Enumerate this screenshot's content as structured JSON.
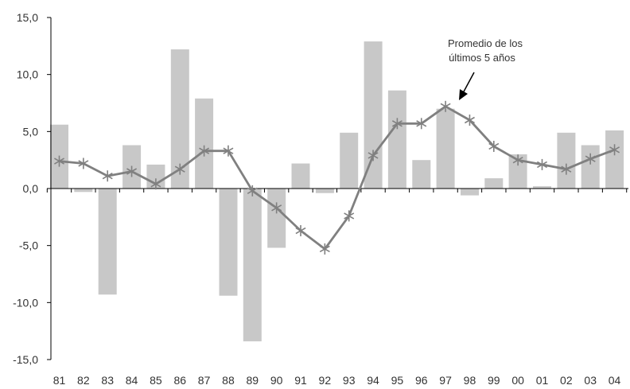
{
  "chart_data": {
    "type": "bar",
    "categories": [
      "81",
      "82",
      "83",
      "84",
      "85",
      "86",
      "87",
      "88",
      "89",
      "90",
      "91",
      "92",
      "93",
      "94",
      "95",
      "96",
      "97",
      "98",
      "99",
      "00",
      "01",
      "02",
      "03",
      "04"
    ],
    "series": [
      {
        "type": "bar",
        "values": [
          5.6,
          -0.3,
          -9.3,
          3.8,
          2.1,
          12.2,
          7.9,
          -9.4,
          -13.4,
          -5.2,
          2.2,
          -0.4,
          4.9,
          12.9,
          8.6,
          2.5,
          7.0,
          -0.6,
          0.9,
          3.0,
          0.2,
          4.9,
          3.8,
          5.1
        ],
        "color": "#c8c8c8"
      },
      {
        "type": "line",
        "values": [
          2.4,
          2.2,
          1.1,
          1.5,
          0.4,
          1.7,
          3.3,
          3.3,
          -0.2,
          -1.7,
          -3.7,
          -5.3,
          -2.4,
          2.9,
          5.7,
          5.7,
          7.2,
          6.0,
          3.7,
          2.5,
          2.1,
          1.7,
          2.6,
          3.4
        ],
        "color": "#808080",
        "marker": "asterisk"
      }
    ],
    "ylim": [
      -15,
      15
    ],
    "yticks": [
      "15,0",
      "10,0",
      "5,0",
      "0,0",
      "-5,0",
      "-10,0",
      "-15,0"
    ],
    "ytick_values": [
      15,
      10,
      5,
      0,
      -5,
      -10,
      -15
    ],
    "annotation": {
      "lines": [
        "Promedio de los",
        "últimos 5 años"
      ],
      "points_to_category": "97"
    },
    "grid": false,
    "legend": "none"
  }
}
